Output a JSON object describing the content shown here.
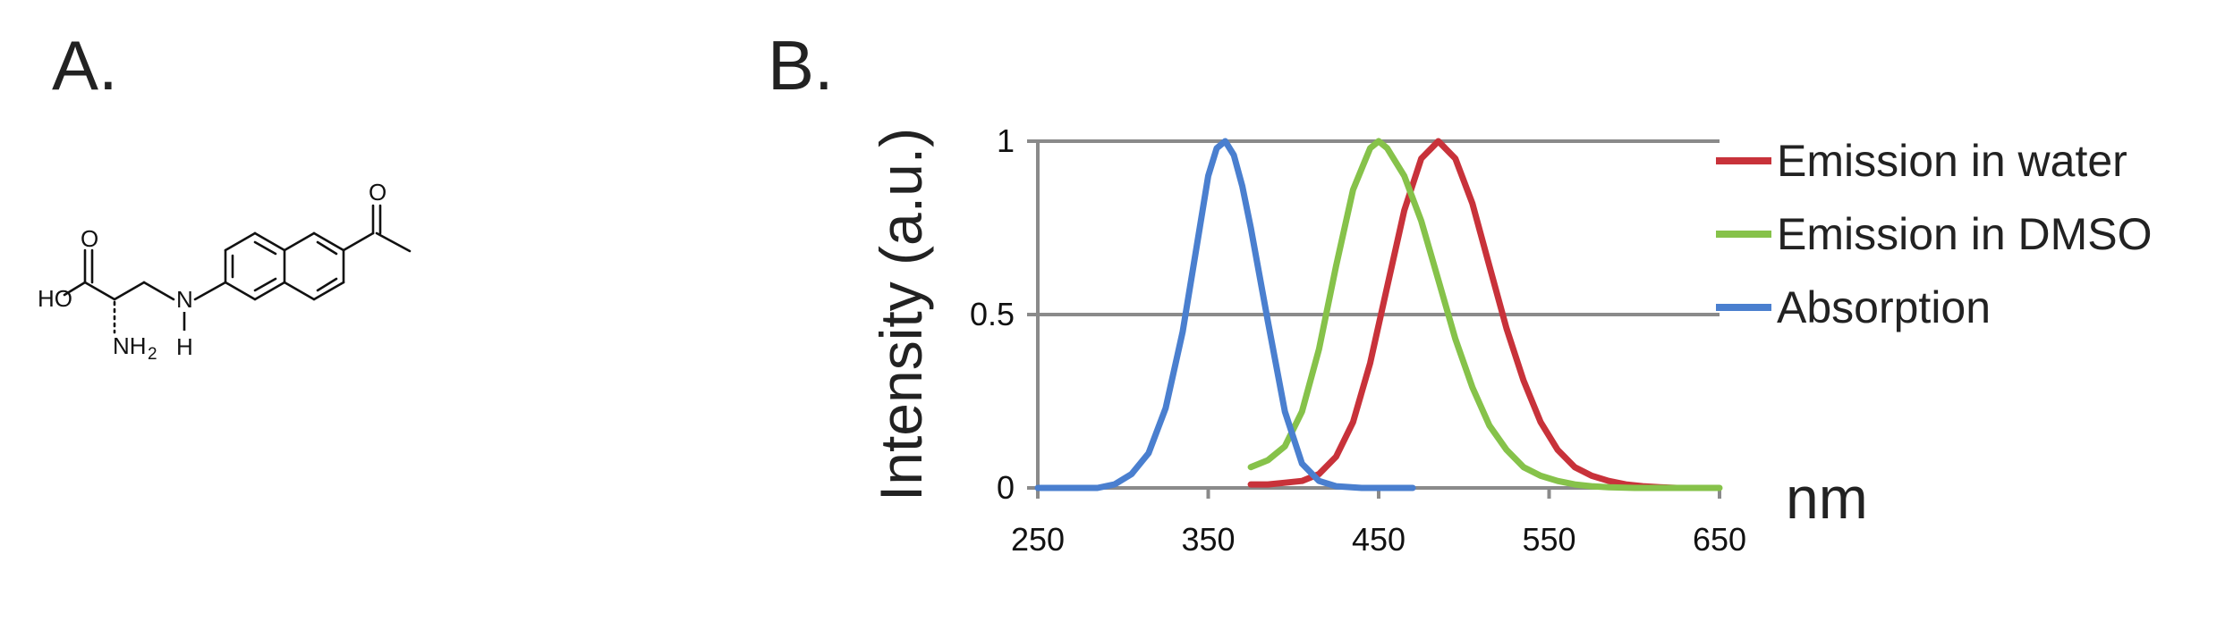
{
  "panels": {
    "a_label": "A.",
    "b_label": "B."
  },
  "molecule": {
    "atoms": {
      "carbonyl_o_acid": "O",
      "hydroxyl": "HO",
      "amine_n": "NH",
      "amine_sub": "2",
      "linker_n": "N",
      "linker_h": "H",
      "ketone_o": "O"
    }
  },
  "chart_data": {
    "type": "line",
    "xlabel": "nm",
    "ylabel": "Intensity (a.u.)",
    "xlim": [
      250,
      650
    ],
    "ylim": [
      0,
      1
    ],
    "x_ticks": [
      "250",
      "350",
      "450",
      "550",
      "650"
    ],
    "y_ticks": [
      "0",
      "0.5",
      "1"
    ],
    "grid": "horizontal",
    "legend_position": "right",
    "series": [
      {
        "name": "Emission in water",
        "color": "#c8323a",
        "x": [
          375,
          385,
          395,
          405,
          415,
          425,
          435,
          445,
          455,
          465,
          475,
          485,
          495,
          505,
          515,
          525,
          535,
          545,
          555,
          565,
          575,
          585,
          595,
          605,
          615,
          625
        ],
        "y": [
          0.01,
          0.01,
          0.015,
          0.02,
          0.04,
          0.09,
          0.19,
          0.36,
          0.58,
          0.8,
          0.95,
          1.0,
          0.95,
          0.82,
          0.64,
          0.46,
          0.31,
          0.19,
          0.11,
          0.06,
          0.035,
          0.02,
          0.01,
          0.005,
          0.002,
          0.0
        ]
      },
      {
        "name": "Emission in DMSO",
        "color": "#86c24a",
        "x": [
          375,
          385,
          395,
          405,
          415,
          425,
          435,
          445,
          450,
          455,
          465,
          475,
          485,
          495,
          505,
          515,
          525,
          535,
          545,
          555,
          565,
          575,
          585,
          600,
          620,
          650
        ],
        "y": [
          0.06,
          0.08,
          0.12,
          0.22,
          0.4,
          0.64,
          0.86,
          0.98,
          1.0,
          0.98,
          0.9,
          0.77,
          0.6,
          0.43,
          0.29,
          0.18,
          0.11,
          0.06,
          0.035,
          0.02,
          0.01,
          0.005,
          0.002,
          0.0,
          0.0,
          0.0
        ]
      },
      {
        "name": "Absorption",
        "color": "#4a7fcf",
        "x": [
          250,
          270,
          285,
          295,
          305,
          315,
          325,
          335,
          345,
          350,
          355,
          360,
          365,
          370,
          375,
          385,
          395,
          405,
          415,
          425,
          440,
          455,
          470
        ],
        "y": [
          0.0,
          0.0,
          0.0,
          0.01,
          0.04,
          0.1,
          0.23,
          0.45,
          0.75,
          0.9,
          0.98,
          1.0,
          0.96,
          0.87,
          0.75,
          0.48,
          0.22,
          0.07,
          0.02,
          0.005,
          0.0,
          0.0,
          0.0
        ]
      }
    ]
  }
}
